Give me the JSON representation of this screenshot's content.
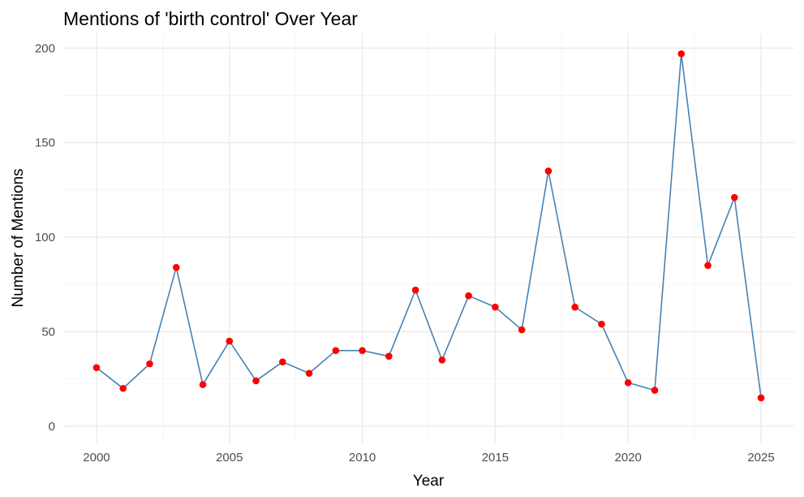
{
  "chart_data": {
    "type": "line",
    "title": "Mentions of 'birth control' Over Year",
    "xlabel": "Year",
    "ylabel": "Number of Mentions",
    "x": [
      2000,
      2001,
      2002,
      2003,
      2004,
      2005,
      2006,
      2007,
      2008,
      2009,
      2010,
      2011,
      2012,
      2013,
      2014,
      2015,
      2016,
      2017,
      2018,
      2019,
      2020,
      2021,
      2022,
      2023,
      2024,
      2025
    ],
    "series": [
      {
        "values": [
          31,
          20,
          33,
          84,
          22,
          45,
          24,
          34,
          28,
          40,
          40,
          37,
          72,
          35,
          69,
          63,
          51,
          135,
          63,
          54,
          23,
          19,
          197,
          85,
          121,
          15
        ]
      }
    ],
    "xlim": [
      1998.75,
      2026.25
    ],
    "ylim": [
      -9.1,
      207.85
    ],
    "x_ticks": [
      2000,
      2005,
      2010,
      2015,
      2020,
      2025
    ],
    "y_ticks": [
      0,
      50,
      100,
      150,
      200
    ],
    "grid": true,
    "line_color": "#4682b4",
    "point_color": "#ff0000"
  }
}
